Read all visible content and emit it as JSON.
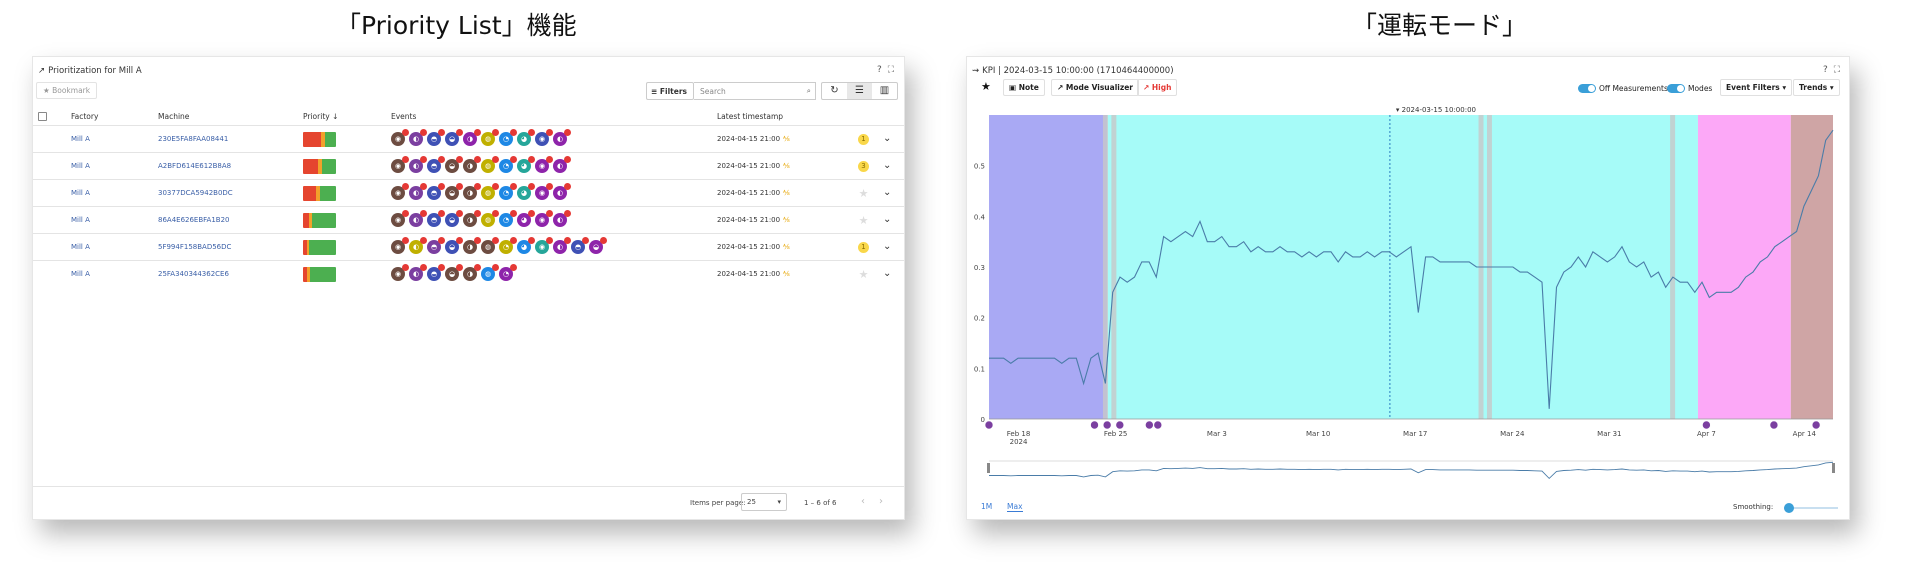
{
  "captions": {
    "left": "「Priority List」機能",
    "right": "「運転モード」"
  },
  "priority": {
    "title": "Prioritization for Mill A",
    "bookmark": "★ Bookmark",
    "filters": "Filters",
    "search_placeholder": "Search",
    "columns": {
      "factory": "Factory",
      "machine": "Machine",
      "priority": "Priority ↓",
      "events": "Events",
      "timestamp": "Latest timestamp"
    },
    "rows": [
      {
        "factory": "Mill A",
        "machine": "230E5FA8FAA08441",
        "timestamp": "2024-04-15 21:00",
        "star": "1",
        "prio": [
          0.55,
          0.12,
          0.33
        ],
        "events": [
          "#6d4c41",
          "#7b3fa0",
          "#3f51b5",
          "#3f51b5",
          "#8e24aa",
          "#c0b000",
          "#1e88e5",
          "#26a69a",
          "#3f51b5",
          "#8e24aa"
        ]
      },
      {
        "factory": "Mill A",
        "machine": "A2BFD614E612B8A8",
        "timestamp": "2024-04-15 21:00",
        "star": "3",
        "prio": [
          0.45,
          0.12,
          0.43
        ],
        "events": [
          "#6d4c41",
          "#7b3fa0",
          "#3f51b5",
          "#6d4c41",
          "#6d4c41",
          "#c0b000",
          "#1e88e5",
          "#26a69a",
          "#8e24aa",
          "#8e24aa"
        ]
      },
      {
        "factory": "Mill A",
        "machine": "30377DCA5942B0DC",
        "timestamp": "2024-04-15 21:00",
        "star": "",
        "prio": [
          0.4,
          0.12,
          0.48
        ],
        "events": [
          "#6d4c41",
          "#7b3fa0",
          "#3f51b5",
          "#6d4c41",
          "#6d4c41",
          "#c0b000",
          "#1e88e5",
          "#26a69a",
          "#8e24aa",
          "#8e24aa"
        ]
      },
      {
        "factory": "Mill A",
        "machine": "86A4E626EBFA1B20",
        "timestamp": "2024-04-15 21:00",
        "star": "",
        "prio": [
          0.18,
          0.1,
          0.72
        ],
        "events": [
          "#6d4c41",
          "#7b3fa0",
          "#3f51b5",
          "#3f51b5",
          "#6d4c41",
          "#c0b000",
          "#1e88e5",
          "#8e24aa",
          "#8e24aa",
          "#8e24aa"
        ]
      },
      {
        "factory": "Mill A",
        "machine": "5F994F158BAD56DC",
        "timestamp": "2024-04-15 21:00",
        "star": "1",
        "prio": [
          0.12,
          0.06,
          0.82
        ],
        "events": [
          "#6d4c41",
          "#c0b000",
          "#7b3fa0",
          "#3f51b5",
          "#6d4c41",
          "#6d4c41",
          "#c0b000",
          "#1e88e5",
          "#26a69a",
          "#8e24aa",
          "#3f51b5",
          "#8e24aa"
        ]
      },
      {
        "factory": "Mill A",
        "machine": "25FA340344362CE6",
        "timestamp": "2024-04-15 21:00",
        "star": "",
        "prio": [
          0.12,
          0.1,
          0.78
        ],
        "events": [
          "#6d4c41",
          "#7b3fa0",
          "#3f51b5",
          "#6d4c41",
          "#6d4c41",
          "#1e88e5",
          "#8e24aa"
        ]
      }
    ],
    "items_per_page_label": "Items per page:",
    "items_per_page": "25",
    "range": "1 – 6 of 6"
  },
  "kpi": {
    "title": "KPI | 2024-03-15 10:00:00 (1710464400000)",
    "note": "Note",
    "mode_visualizer": "Mode Visualizer",
    "high": "High",
    "off_measurements": "Off Measurements",
    "modes": "Modes",
    "event_filters": "Event Filters",
    "trends": "Trends",
    "cursor_label": "2024-03-15 10:00:00",
    "smoothing": "Smoothing:",
    "tabs": [
      "1M",
      "Max"
    ]
  },
  "chart_data": {
    "type": "line",
    "x_ticks": [
      "Feb 18\n2024",
      "Feb 25",
      "Mar 3",
      "Mar 10",
      "Mar 17",
      "Mar 24",
      "Mar 31",
      "Apr 7",
      "Apr 14"
    ],
    "y_ticks": [
      "0",
      "0.1",
      "0.2",
      "0.3",
      "0.4",
      "0.5"
    ],
    "ylim": [
      0,
      0.6
    ],
    "grid": false,
    "mode_bands": [
      {
        "from": 0.0,
        "to": 0.14,
        "color": "#a9a9f4"
      },
      {
        "from": 0.14,
        "to": 0.84,
        "color": "#a6fbf8"
      },
      {
        "from": 0.84,
        "to": 0.95,
        "color": "#fca8f7"
      },
      {
        "from": 0.95,
        "to": 1.0,
        "color": "#cfa5a5"
      }
    ],
    "series": [
      {
        "values": [
          0.12,
          0.12,
          0.12,
          0.11,
          0.12,
          0.12,
          0.12,
          0.12,
          0.12,
          0.12,
          0.11,
          0.12,
          0.12,
          0.07,
          0.12,
          0.13,
          0.07,
          0.25,
          0.28,
          0.27,
          0.28,
          0.31,
          0.31,
          0.28,
          0.36,
          0.35,
          0.36,
          0.37,
          0.36,
          0.39,
          0.35,
          0.35,
          0.36,
          0.34,
          0.34,
          0.35,
          0.33,
          0.34,
          0.33,
          0.33,
          0.34,
          0.33,
          0.33,
          0.32,
          0.33,
          0.32,
          0.33,
          0.33,
          0.31,
          0.33,
          0.32,
          0.32,
          0.33,
          0.32,
          0.33,
          0.33,
          0.32,
          0.33,
          0.34,
          0.21,
          0.32,
          0.32,
          0.31,
          0.31,
          0.31,
          0.31,
          0.31,
          0.3,
          0.3,
          0.3,
          0.3,
          0.3,
          0.3,
          0.29,
          0.29,
          0.28,
          0.27,
          0.02,
          0.26,
          0.29,
          0.3,
          0.32,
          0.3,
          0.33,
          0.32,
          0.31,
          0.32,
          0.34,
          0.31,
          0.3,
          0.31,
          0.28,
          0.29,
          0.26,
          0.28,
          0.27,
          0.27,
          0.25,
          0.27,
          0.24,
          0.25,
          0.25,
          0.25,
          0.26,
          0.28,
          0.29,
          0.31,
          0.32,
          0.34,
          0.35,
          0.36,
          0.37,
          0.42,
          0.45,
          0.48,
          0.55,
          0.57
        ]
      }
    ]
  }
}
